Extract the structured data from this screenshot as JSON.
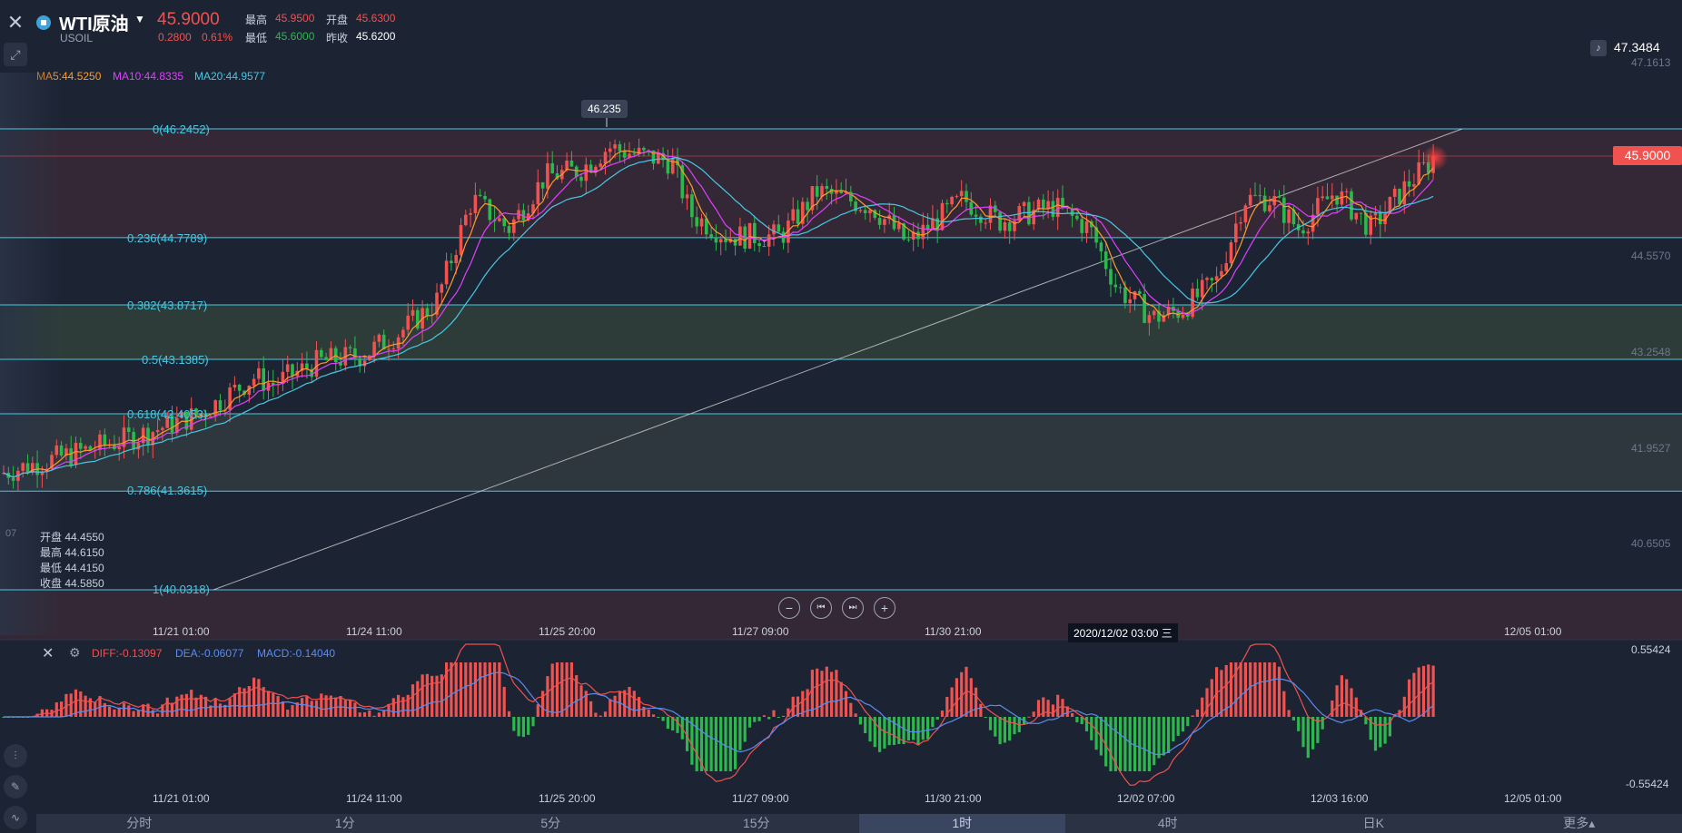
{
  "header": {
    "symbol_name": "WTI原油",
    "symbol_code": "USOIL",
    "last_price": "45.9000",
    "change": "0.2800",
    "change_pct": "0.61%",
    "high_label": "最高",
    "high": "45.9500",
    "open_label": "开盘",
    "open": "45.6300",
    "low_label": "最低",
    "low": "45.6000",
    "prev_close_label": "昨收",
    "prev_close": "45.6200"
  },
  "ma": {
    "ma5": "MA5:44.5250",
    "ma10": "MA10:44.8335",
    "ma20": "MA20:44.9577"
  },
  "right_axis": {
    "top_value": "47.3484",
    "ticks": [
      "47.1613",
      "44.5570",
      "43.2548",
      "41.9527",
      "40.6505"
    ],
    "current_price": "45.9000"
  },
  "fibonacci": [
    "0(46.2452)",
    "0.236(44.7789)",
    "0.382(43.8717)",
    "0.5(43.1385)",
    "0.618(42.4053)",
    "0.786(41.3615)",
    "1(40.0318)"
  ],
  "peak_tooltip": "46.235",
  "left_tick": "07",
  "ohlc_box": {
    "open": "开盘 44.4550",
    "high": "最高 44.6150",
    "low": "最低 44.4150",
    "close": "收盘 44.5850"
  },
  "x_labels": [
    "11/21 01:00",
    "11/24 11:00",
    "11/25 20:00",
    "11/27 09:00",
    "11/30 21:00",
    "12/05 01:00"
  ],
  "crosshair_label": "2020/12/02 03:00 三",
  "macd": {
    "diff": "DIFF:-0.13097",
    "dea": "DEA:-0.06077",
    "macd": "MACD:-0.14040",
    "top": "0.55424",
    "bottom": "-0.55424"
  },
  "macd_x_labels": [
    "11/21 01:00",
    "11/24 11:00",
    "11/25 20:00",
    "11/27 09:00",
    "11/30 21:00",
    "12/02 07:00",
    "12/03 16:00",
    "12/05 01:00"
  ],
  "tabs": [
    "分时",
    "1分",
    "5分",
    "15分",
    "1时",
    "4时",
    "日K",
    "更多▴"
  ],
  "active_tab": "1时",
  "colors": {
    "up": "#f0524f",
    "down": "#2db84d",
    "fib_line": "#47c8e3",
    "ma5": "#ff9a2e",
    "ma10": "#e040fb",
    "ma20": "#47c8e3"
  }
}
